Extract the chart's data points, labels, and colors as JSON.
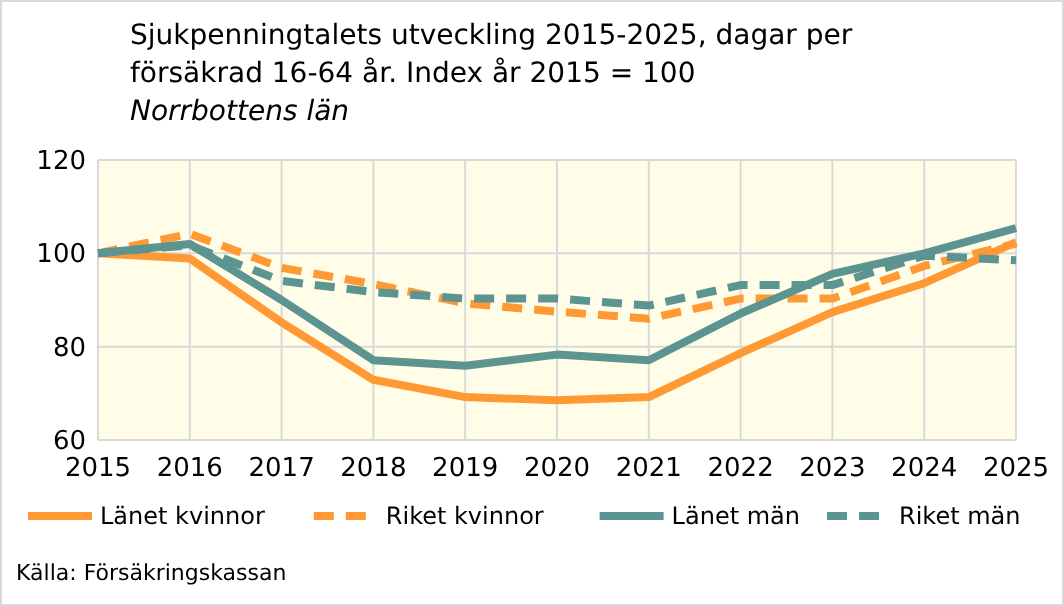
{
  "chart_data": {
    "type": "line",
    "title": "Sjukpenningtalets utveckling 2015-2025, dagar per försäkrad 16-64 år. Index år 2015 = 100",
    "subtitle": "Norrbottens län",
    "annotations": [
      "Källa: Försäkringskassan"
    ],
    "x": [
      2015,
      2016,
      2017,
      2018,
      2019,
      2020,
      2021,
      2022,
      2023,
      2024,
      2025
    ],
    "xlim": [
      2015,
      2025
    ],
    "xticks": [
      2015,
      2016,
      2017,
      2018,
      2019,
      2020,
      2021,
      2022,
      2023,
      2024,
      2025
    ],
    "ylim": [
      60,
      120
    ],
    "yticks": [
      60,
      80,
      100,
      120
    ],
    "grid": true,
    "legend": "bottom",
    "series": [
      {
        "name": "Länet kvinnor",
        "color": "#ff9933",
        "line_style": "solid",
        "values": [
          100,
          98.9,
          85.2,
          72.9,
          69.2,
          68.5,
          69.2,
          78.6,
          87.4,
          93.6,
          102.4
        ]
      },
      {
        "name": "Riket kvinnor",
        "color": "#ff9933",
        "line_style": "dashed",
        "values": [
          100,
          104.2,
          96.9,
          93.4,
          89.3,
          87.5,
          86.0,
          90.3,
          90.3,
          97.3,
          102.1
        ]
      },
      {
        "name": "Länet män",
        "color": "#5b9490",
        "line_style": "solid",
        "values": [
          100,
          102,
          90,
          77.1,
          75.9,
          78.3,
          77.1,
          87.1,
          95.6,
          100,
          105.4
        ]
      },
      {
        "name": "Riket män",
        "color": "#5b9490",
        "line_style": "dashed",
        "values": [
          100,
          101.7,
          94.1,
          91.7,
          90.3,
          90.3,
          88.8,
          93.2,
          93.2,
          99.5,
          98.5
        ]
      }
    ]
  }
}
